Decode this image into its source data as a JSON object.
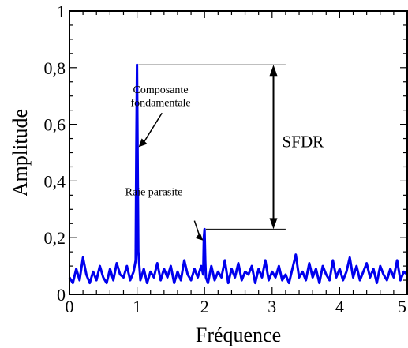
{
  "chart_data": {
    "type": "line",
    "title": "",
    "xlabel": "Fréquence",
    "ylabel": "Amplitude",
    "xlim": [
      0,
      5
    ],
    "ylim": [
      0,
      1
    ],
    "grid": false,
    "x_ticks": [
      {
        "value": 0,
        "label": "0"
      },
      {
        "value": 1,
        "label": "1"
      },
      {
        "value": 2,
        "label": "2"
      },
      {
        "value": 3,
        "label": "3"
      },
      {
        "value": 4,
        "label": "4"
      },
      {
        "value": 5,
        "label": "5"
      }
    ],
    "y_ticks": [
      {
        "value": 0,
        "label": "0"
      },
      {
        "value": 0.2,
        "label": "0,2"
      },
      {
        "value": 0.4,
        "label": "0,4"
      },
      {
        "value": 0.6,
        "label": "0,6"
      },
      {
        "value": 0.8,
        "label": "0,8"
      },
      {
        "value": 1,
        "label": "1"
      }
    ],
    "series": [
      {
        "color": "#0000ee",
        "x": [
          0,
          0.05,
          0.1,
          0.15,
          0.2,
          0.25,
          0.3,
          0.35,
          0.4,
          0.45,
          0.5,
          0.55,
          0.6,
          0.65,
          0.7,
          0.75,
          0.8,
          0.85,
          0.9,
          0.95,
          0.98,
          0.99,
          1.0,
          1.01,
          1.02,
          1.05,
          1.1,
          1.15,
          1.2,
          1.25,
          1.3,
          1.35,
          1.4,
          1.45,
          1.5,
          1.55,
          1.6,
          1.65,
          1.7,
          1.75,
          1.8,
          1.85,
          1.9,
          1.95,
          1.98,
          1.99,
          2.0,
          2.01,
          2.02,
          2.05,
          2.1,
          2.15,
          2.2,
          2.25,
          2.3,
          2.35,
          2.4,
          2.45,
          2.5,
          2.55,
          2.6,
          2.65,
          2.7,
          2.75,
          2.8,
          2.85,
          2.9,
          2.95,
          3.0,
          3.05,
          3.1,
          3.15,
          3.2,
          3.25,
          3.3,
          3.35,
          3.4,
          3.45,
          3.5,
          3.55,
          3.6,
          3.65,
          3.7,
          3.75,
          3.8,
          3.85,
          3.9,
          3.95,
          4.0,
          4.05,
          4.1,
          4.15,
          4.2,
          4.25,
          4.3,
          4.35,
          4.4,
          4.45,
          4.5,
          4.55,
          4.6,
          4.65,
          4.7,
          4.75,
          4.8,
          4.85,
          4.9,
          4.95,
          5.0
        ],
        "y": [
          0.06,
          0.04,
          0.09,
          0.05,
          0.13,
          0.07,
          0.04,
          0.08,
          0.05,
          0.1,
          0.06,
          0.04,
          0.09,
          0.05,
          0.11,
          0.07,
          0.06,
          0.1,
          0.05,
          0.08,
          0.12,
          0.5,
          0.81,
          0.45,
          0.15,
          0.05,
          0.09,
          0.04,
          0.08,
          0.06,
          0.11,
          0.05,
          0.09,
          0.06,
          0.1,
          0.04,
          0.08,
          0.05,
          0.12,
          0.07,
          0.05,
          0.09,
          0.06,
          0.1,
          0.07,
          0.2,
          0.23,
          0.12,
          0.06,
          0.04,
          0.1,
          0.05,
          0.08,
          0.06,
          0.12,
          0.04,
          0.09,
          0.06,
          0.11,
          0.05,
          0.08,
          0.07,
          0.1,
          0.04,
          0.09,
          0.06,
          0.12,
          0.05,
          0.08,
          0.06,
          0.1,
          0.05,
          0.07,
          0.04,
          0.09,
          0.14,
          0.06,
          0.08,
          0.05,
          0.11,
          0.06,
          0.09,
          0.04,
          0.1,
          0.07,
          0.05,
          0.12,
          0.06,
          0.09,
          0.05,
          0.08,
          0.13,
          0.06,
          0.1,
          0.05,
          0.08,
          0.11,
          0.06,
          0.09,
          0.04,
          0.1,
          0.07,
          0.05,
          0.09,
          0.06,
          0.12,
          0.05,
          0.08,
          0.07
        ]
      }
    ],
    "annotations": [
      {
        "text": "Composante",
        "x": 1.35,
        "y": 0.71
      },
      {
        "text": "fondamentale",
        "x": 1.35,
        "y": 0.665
      },
      {
        "text": "Raie parasite",
        "x": 1.25,
        "y": 0.35
      },
      {
        "text": "SFDR",
        "x": 3.15,
        "y": 0.52
      }
    ]
  }
}
